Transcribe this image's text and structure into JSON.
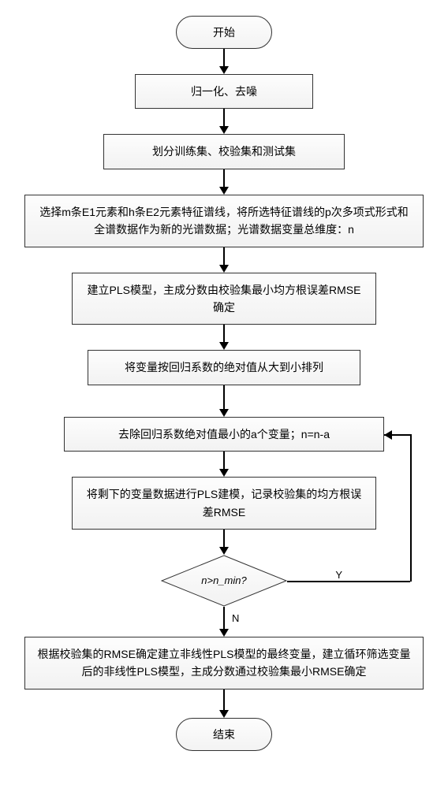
{
  "flow": {
    "start": "开始",
    "step1": "归一化、去噪",
    "step2": "划分训练集、校验集和测试集",
    "step3": "选择m条E1元素和h条E2元素特征谱线，将所选特征谱线的p次多项式形式和全谱数据作为新的光谱数据；光谱数据变量总维度：n",
    "step4": "建立PLS模型，主成分数由校验集最小均方根误差RMSE确定",
    "step5": "将变量按回归系数的绝对值从大到小排列",
    "step6": "去除回归系数绝对值最小的a个变量；n=n-a",
    "step7": "将剩下的变量数据进行PLS建模，记录校验集的均方根误差RMSE",
    "decision": "n>n_min?",
    "branch_yes": "Y",
    "branch_no": "N",
    "step8": "根据校验集的RMSE确定建立非线性PLS模型的最终变量，建立循环筛选变量后的非线性PLS模型，主成分数通过校验集最小RMSE确定",
    "end": "结束"
  },
  "style": {
    "arrow_len_short": 24,
    "arrow_len_med": 28,
    "node_bg_top": "#fdfdfd",
    "node_bg_bottom": "#f2f2f2",
    "border_color": "#333333",
    "text_color": "#000000",
    "font_size": 14,
    "diamond_w": 160,
    "diamond_h": 66
  }
}
